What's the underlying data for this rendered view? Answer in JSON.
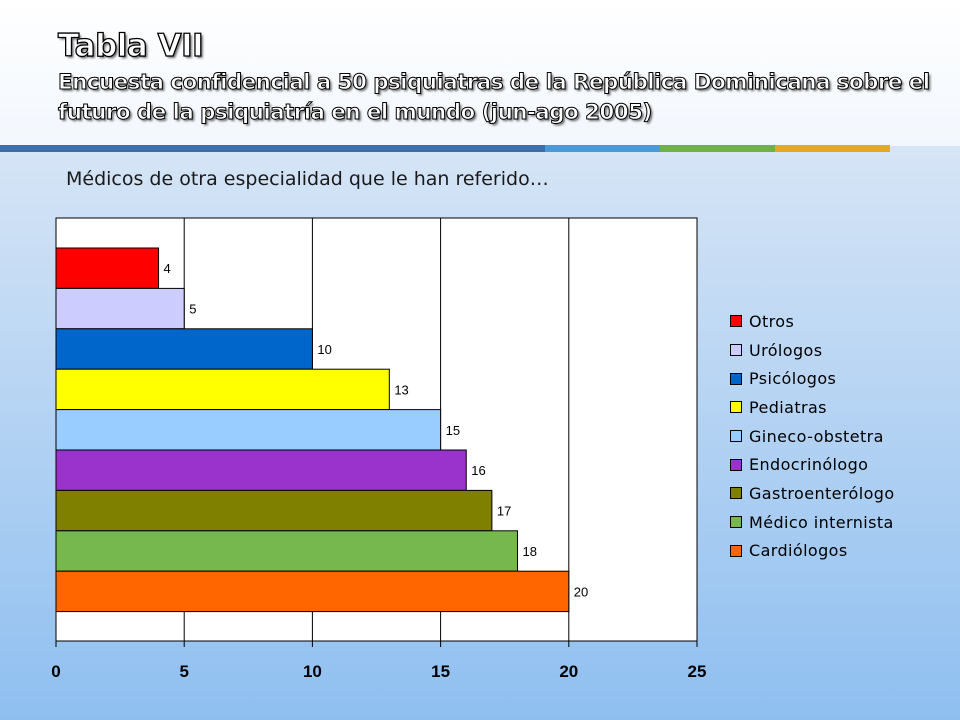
{
  "header": {
    "title": "Tabla VII",
    "subtitle": "Encuesta confidencial a 50 psiquiatras de la República Dominicana sobre el futuro de la psiquiatría en el mundo (jun-ago 2005)",
    "stripe_colors": [
      "#3b6fa8",
      "#4a9ad8",
      "#6fb048",
      "#e2a82a"
    ]
  },
  "chart_data": {
    "type": "bar",
    "orientation": "horizontal",
    "title": "Médicos de otra especialidad que le han referido…",
    "categories": [
      "Otros",
      "Urólogos",
      "Psicólogos",
      "Pediatras",
      "Gineco-obstetra",
      "Endocrinólogo",
      "Gastroenterólogo",
      "Médico internista",
      "Cardiólogos"
    ],
    "values": [
      4,
      5,
      10,
      13,
      15,
      16,
      17,
      18,
      20
    ],
    "colors": [
      "#ff0000",
      "#ccccff",
      "#0066cc",
      "#ffff00",
      "#99ccff",
      "#9933cc",
      "#808000",
      "#77b84e",
      "#ff6600"
    ],
    "xlim": [
      0,
      25
    ],
    "xticks": [
      "0",
      "5",
      "10",
      "15",
      "20",
      "25"
    ],
    "grid": true,
    "legend_position": "right"
  }
}
